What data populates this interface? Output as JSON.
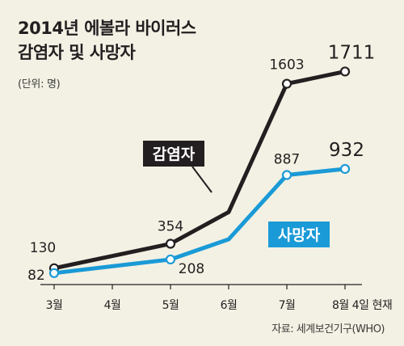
{
  "title_line1": "2014년 에볼라 바이러스",
  "title_line2": "감염자 및 사망자",
  "unit": "(단위: 명)",
  "source": "자료: 세계보건기구(WHO)",
  "colors": {
    "background": "#f3f1e4",
    "infected": "#231f20",
    "deaths": "#1a9ad6",
    "axis": "#231f20"
  },
  "chart_data": {
    "type": "line",
    "categories": [
      "3월",
      "4월",
      "5월",
      "6월",
      "7월",
      "8월 4일 현재"
    ],
    "series": [
      {
        "name": "감염자",
        "points": [
          {
            "x": "3월",
            "y": 130,
            "label": "130"
          },
          {
            "x": "5월",
            "y": 354,
            "label": "354"
          },
          {
            "x": "6월",
            "y": 650,
            "label": ""
          },
          {
            "x": "7월",
            "y": 1603,
            "label": "1603"
          },
          {
            "x": "8월 4일 현재",
            "y": 1711,
            "label": "1711"
          }
        ]
      },
      {
        "name": "사망자",
        "points": [
          {
            "x": "3월",
            "y": 82,
            "label": "82"
          },
          {
            "x": "5월",
            "y": 208,
            "label": "208"
          },
          {
            "x": "6월",
            "y": 400,
            "label": ""
          },
          {
            "x": "7월",
            "y": 887,
            "label": "887"
          },
          {
            "x": "8월 4일 현재",
            "y": 932,
            "label": "932"
          }
        ]
      }
    ],
    "grid": false,
    "legend": "inline labels on lines"
  }
}
